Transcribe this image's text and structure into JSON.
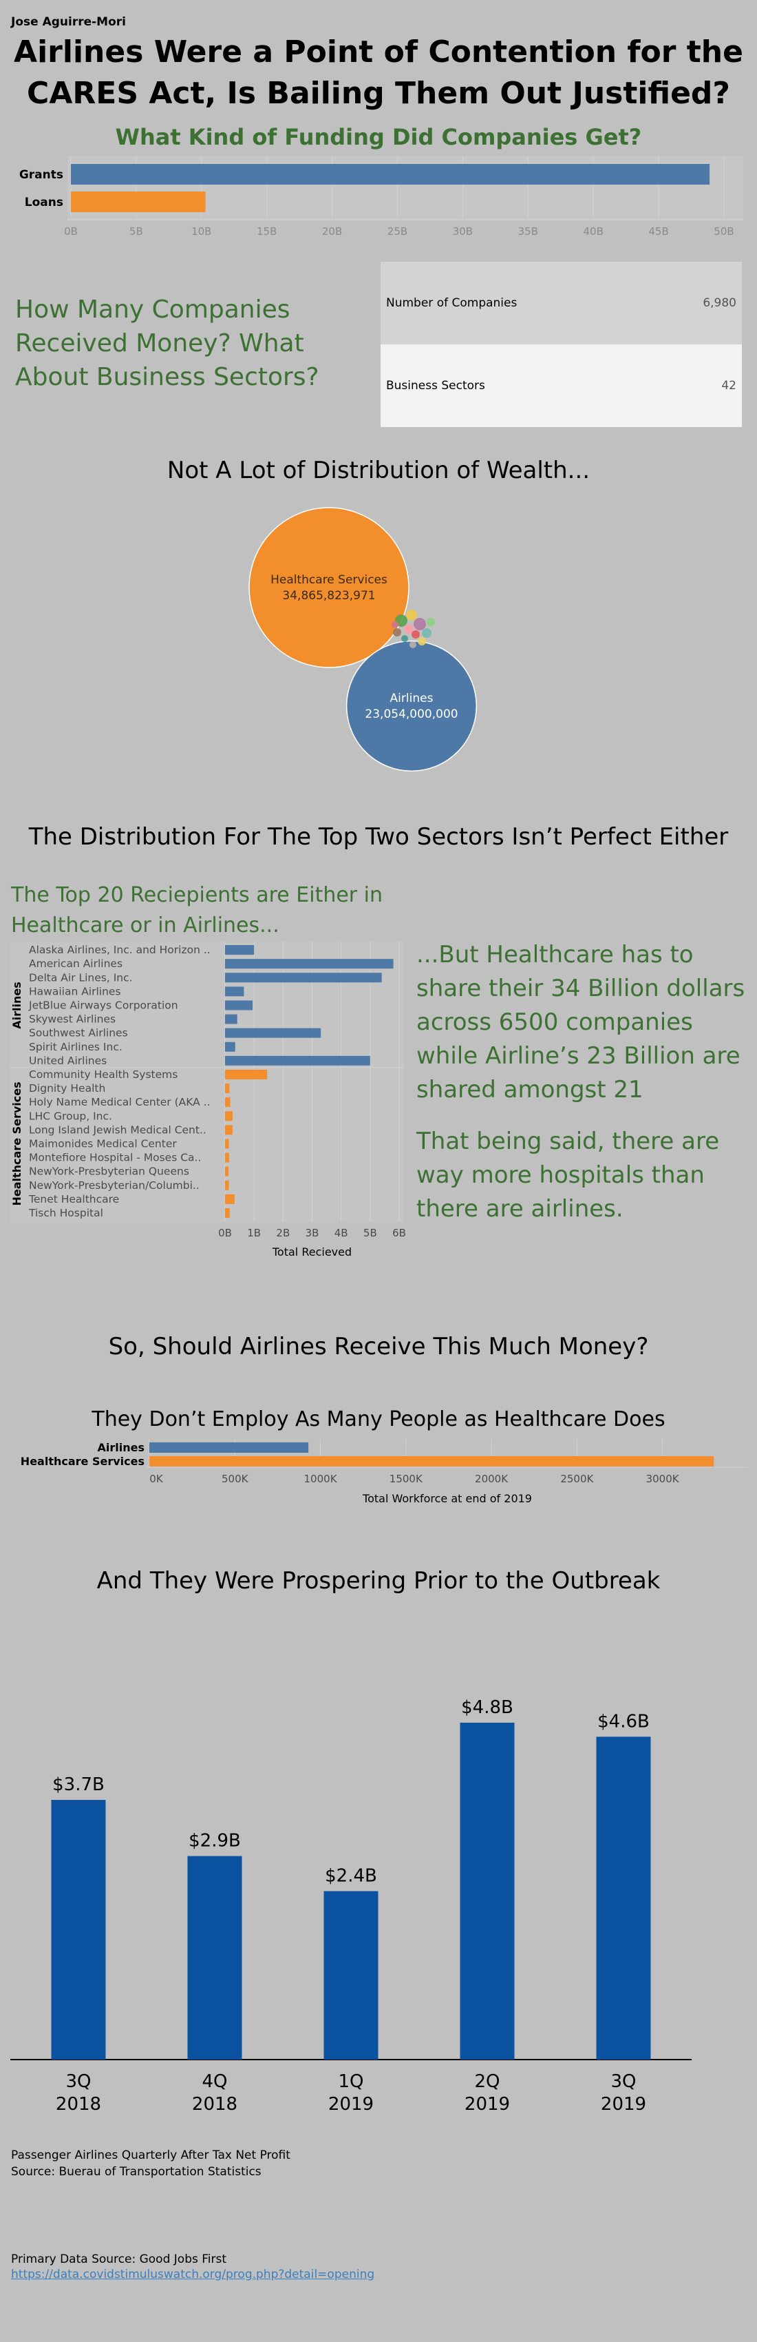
{
  "author": "Jose Aguirre-Mori",
  "title_line1": "Airlines Were a Point of Contention for the",
  "title_line2": "CARES Act, Is Bailing Them Out Justified?",
  "funding": {
    "title": "What Kind of Funding Did Companies Get?"
  },
  "counts": {
    "question": "How Many Companies Received Money? What About Business Sectors?",
    "companies_label": "Number of Companies",
    "companies_value": "6,980",
    "sectors_label": "Business Sectors",
    "sectors_value": "42"
  },
  "distribution": {
    "title": "Not A Lot of Distribution of Wealth..."
  },
  "top_two": {
    "title": "The Distribution For The Top Two Sectors Isn’t Perfect Either",
    "subtitle": "The Top 20 Reciepients are Either in Healthcare or in Airlines...",
    "commentary1": "...But Healthcare has to share their 34 Billion dollars across 6500 companies while Airline’s 23 Billion are shared amongst 21",
    "commentary2": "That being said, there are way more hospitals than there are airlines."
  },
  "question2": "So, Should Airlines Receive This Much Money?",
  "workforce": {
    "title": "They Don’t Employ As Many People as Healthcare Does"
  },
  "profits": {
    "title": "And They Were Prospering Prior to the Outbreak",
    "caption1": "Passenger Airlines Quarterly After Tax Net Profit",
    "caption2": "Source: Buerau of Transportation Statistics"
  },
  "footer": {
    "primary_source": "Primary Data Source: Good Jobs First",
    "link": "https://data.covidstimuluswatch.org/prog.php?detail=opening"
  },
  "colors": {
    "blue": "#4e79a7",
    "orange": "#f28e2b",
    "green": "#3d7134",
    "profit_blue": "#0b52a0",
    "background": "#c0c0c0"
  },
  "chart_data": [
    {
      "type": "bar",
      "orientation": "horizontal",
      "categories": [
        "Grants",
        "Loans"
      ],
      "values": [
        48900000000,
        10300000000
      ],
      "xlim": [
        0,
        50000000000
      ],
      "tick_values": [
        0,
        5000000000,
        10000000000,
        15000000000,
        20000000000,
        25000000000,
        30000000000,
        35000000000,
        40000000000,
        45000000000,
        50000000000
      ],
      "tick_labels": [
        "0B",
        "5B",
        "10B",
        "15B",
        "20B",
        "25B",
        "30B",
        "35B",
        "40B",
        "45B",
        "50B"
      ],
      "grid": true
    },
    {
      "type": "bubble",
      "bubbles": [
        {
          "name": "Healthcare Services",
          "value": 34865823971,
          "label": "34,865,823,971",
          "color": "#f28e2b"
        },
        {
          "name": "Airlines",
          "value": 23054000000,
          "label": "23,054,000,000",
          "color": "#4e79a7"
        }
      ],
      "minor_bubble_colors": [
        "#59a14f",
        "#edc948",
        "#b07aa1",
        "#ff9da7",
        "#76b7b2",
        "#e15759",
        "#9c755f",
        "#8cd17d",
        "#499894",
        "#f1ce63",
        "#d37295",
        "#bab0ac"
      ]
    },
    {
      "type": "bar",
      "orientation": "horizontal",
      "xlabel": "Total Recieved",
      "groups": [
        {
          "name": "Airlines",
          "color": "#4e79a7",
          "categories": [
            "Alaska Airlines, Inc. and Horizon ..",
            "American Airlines",
            "Delta Air Lines, Inc.",
            "Hawaiian Airlines",
            "JetBlue Airways Corporation",
            "Skywest Airlines",
            "Southwest Airlines",
            "Spirit Airlines Inc.",
            "United Airlines"
          ],
          "values": [
            1000000000,
            5800000000,
            5400000000,
            650000000,
            950000000,
            420000000,
            3300000000,
            350000000,
            5000000000
          ]
        },
        {
          "name": "Healthcare Services",
          "color": "#f28e2b",
          "categories": [
            "Community Health Systems",
            "Dignity Health",
            "Holy Name Medical Center (AKA ..",
            "LHC Group, Inc.",
            "Long Island Jewish Medical Cent..",
            "Maimonides Medical Center",
            "Montefiore Hospital - Moses Ca..",
            "NewYork-Presbyterian Queens",
            "NewYork-Presbyterian/Columbi..",
            "Tenet Healthcare",
            "Tisch Hospital"
          ],
          "values": [
            1450000000,
            150000000,
            180000000,
            260000000,
            260000000,
            130000000,
            140000000,
            120000000,
            130000000,
            330000000,
            160000000
          ]
        }
      ],
      "xlim": [
        0,
        6000000000
      ],
      "tick_values": [
        0,
        1000000000,
        2000000000,
        3000000000,
        4000000000,
        5000000000,
        6000000000
      ],
      "tick_labels": [
        "0B",
        "1B",
        "2B",
        "3B",
        "4B",
        "5B",
        "6B"
      ],
      "grid": true
    },
    {
      "type": "bar",
      "orientation": "horizontal",
      "xlabel": "Total Workforce at end of 2019",
      "categories": [
        "Airlines",
        "Healthcare Services"
      ],
      "values": [
        930000,
        3300000
      ],
      "colors": [
        "#4e79a7",
        "#f28e2b"
      ],
      "xlim": [
        0,
        3400000
      ],
      "tick_values": [
        0,
        500000,
        1000000,
        1500000,
        2000000,
        2500000,
        3000000
      ],
      "tick_labels": [
        "0K",
        "500K",
        "1000K",
        "1500K",
        "2000K",
        "2500K",
        "3000K"
      ],
      "grid": true
    },
    {
      "type": "bar",
      "categories": [
        [
          "3Q",
          "2018"
        ],
        [
          "4Q",
          "2018"
        ],
        [
          "1Q",
          "2019"
        ],
        [
          "2Q",
          "2019"
        ],
        [
          "3Q",
          "2019"
        ]
      ],
      "values": [
        3.7,
        2.9,
        2.4,
        4.8,
        4.6
      ],
      "value_labels": [
        "$3.7B",
        "$2.9B",
        "$2.4B",
        "$4.8B",
        "$4.6B"
      ],
      "ylim": [
        0,
        5.3
      ],
      "grid": false
    }
  ]
}
